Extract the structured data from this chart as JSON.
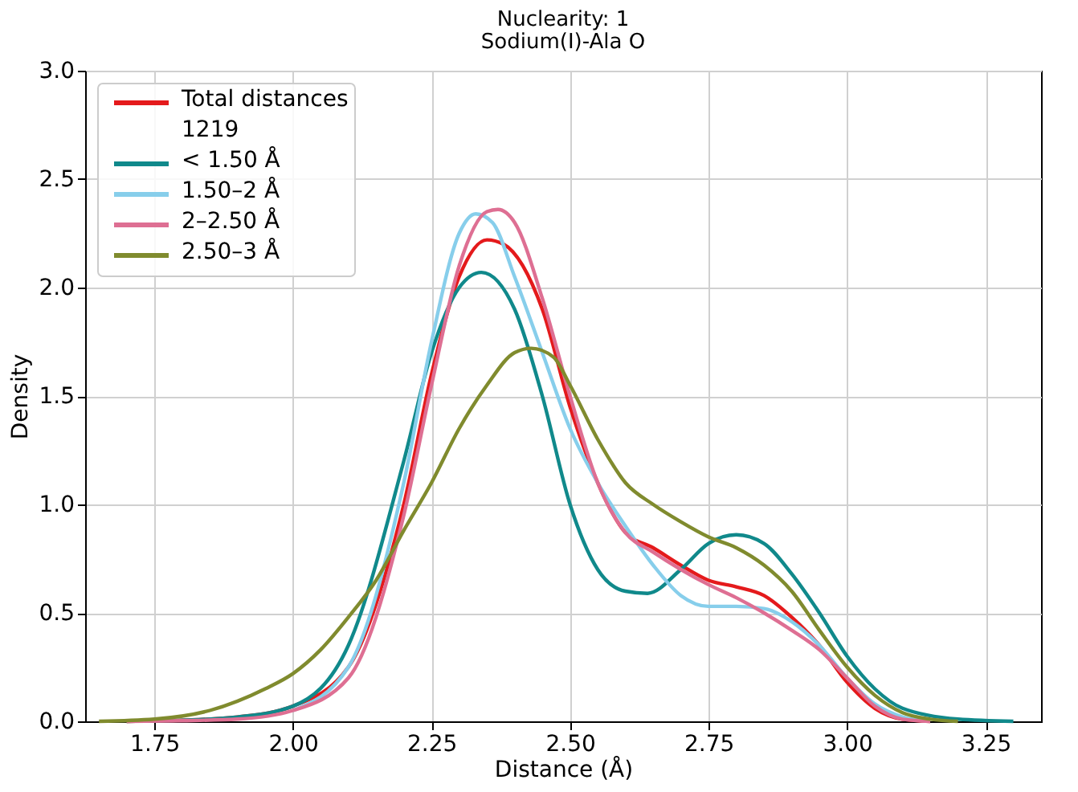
{
  "chart_data": {
    "type": "line",
    "title": "Nuclearity: 1",
    "subtitle": "Sodium(I)-Ala O",
    "xlabel": "Distance (Å)",
    "ylabel": "Density",
    "xlim": [
      1.625,
      3.35
    ],
    "ylim": [
      0,
      3.0
    ],
    "xticks": [
      1.75,
      {
        "value": 2,
        "label": "2.00"
      },
      2.25,
      {
        "value": 2.5,
        "label": "2.50"
      },
      2.75,
      {
        "value": 3,
        "label": "3.00"
      },
      3.25
    ],
    "yticks": [
      {
        "value": 0,
        "label": "0.0"
      },
      0.5,
      {
        "value": 1,
        "label": "1.0"
      },
      1.5,
      {
        "value": 2,
        "label": "2.0"
      },
      2.5,
      {
        "value": 3,
        "label": "3.0"
      }
    ],
    "grid": true,
    "legend": "top left",
    "line_style": "solid",
    "marker": "none",
    "series": [
      {
        "name": "Total distances\n1219",
        "color": "#e41a1c",
        "x": [
          1.7,
          1.8,
          1.9,
          2.0,
          2.1,
          2.2,
          2.25,
          2.3,
          2.35,
          2.38,
          2.45,
          2.5,
          2.55,
          2.6,
          2.65,
          2.7,
          2.75,
          2.8,
          2.85,
          2.9,
          2.95,
          3.0,
          3.05,
          3.1,
          3.15
        ],
        "values": [
          0,
          0.005,
          0.02,
          0.07,
          0.25,
          1.0,
          1.6,
          2.05,
          2.22,
          2.2,
          1.9,
          1.45,
          1.1,
          0.87,
          0.8,
          0.72,
          0.65,
          0.62,
          0.58,
          0.48,
          0.35,
          0.18,
          0.06,
          0.01,
          0
        ]
      },
      {
        "name": "< 1.50 Å",
        "color": "#10898b",
        "x": [
          1.7,
          1.8,
          1.9,
          2.0,
          2.1,
          2.2,
          2.25,
          2.3,
          2.34,
          2.4,
          2.45,
          2.5,
          2.55,
          2.6,
          2.64,
          2.7,
          2.75,
          2.8,
          2.85,
          2.9,
          2.95,
          3.0,
          3.05,
          3.1,
          3.2,
          3.3
        ],
        "values": [
          0,
          0.005,
          0.02,
          0.07,
          0.35,
          1.2,
          1.7,
          2.0,
          2.07,
          1.9,
          1.5,
          1.0,
          0.7,
          0.6,
          0.59,
          0.7,
          0.82,
          0.86,
          0.82,
          0.68,
          0.5,
          0.3,
          0.15,
          0.06,
          0.01,
          0
        ]
      },
      {
        "name": "1.50–2 Å",
        "color": "#87ceeb",
        "x": [
          2.0,
          2.1,
          2.2,
          2.25,
          2.3,
          2.33,
          2.36,
          2.4,
          2.45,
          2.5,
          2.55,
          2.6,
          2.65,
          2.7,
          2.75,
          2.8,
          2.85,
          2.9,
          2.95,
          3.0,
          3.05,
          3.1,
          3.15
        ],
        "values": [
          0.05,
          0.25,
          1.1,
          1.75,
          2.25,
          2.34,
          2.3,
          2.05,
          1.7,
          1.35,
          1.1,
          0.9,
          0.72,
          0.58,
          0.53,
          0.53,
          0.52,
          0.46,
          0.35,
          0.2,
          0.08,
          0.02,
          0
        ]
      },
      {
        "name": "2–2.50 Å",
        "color": "#de6f93",
        "x": [
          1.7,
          1.8,
          1.9,
          2.0,
          2.1,
          2.2,
          2.25,
          2.3,
          2.35,
          2.37,
          2.4,
          2.45,
          2.5,
          2.55,
          2.6,
          2.65,
          2.7,
          2.75,
          2.8,
          2.85,
          2.9,
          2.95,
          3.0,
          3.05,
          3.1,
          3.15
        ],
        "values": [
          0,
          0.003,
          0.01,
          0.05,
          0.2,
          0.95,
          1.55,
          2.1,
          2.35,
          2.36,
          2.3,
          1.95,
          1.5,
          1.1,
          0.87,
          0.78,
          0.7,
          0.63,
          0.57,
          0.5,
          0.42,
          0.33,
          0.2,
          0.07,
          0.01,
          0
        ]
      },
      {
        "name": "2.50–3 Å",
        "color": "#808b2e",
        "x": [
          1.65,
          1.75,
          1.85,
          1.95,
          2.0,
          2.05,
          2.1,
          2.15,
          2.2,
          2.25,
          2.3,
          2.35,
          2.4,
          2.43,
          2.47,
          2.5,
          2.55,
          2.6,
          2.65,
          2.7,
          2.75,
          2.8,
          2.85,
          2.9,
          2.95,
          3.0,
          3.05,
          3.1,
          3.15,
          3.2
        ],
        "values": [
          0,
          0.01,
          0.05,
          0.15,
          0.22,
          0.33,
          0.48,
          0.65,
          0.88,
          1.1,
          1.35,
          1.55,
          1.7,
          1.72,
          1.68,
          1.55,
          1.3,
          1.1,
          1.0,
          0.92,
          0.85,
          0.8,
          0.72,
          0.6,
          0.42,
          0.25,
          0.12,
          0.04,
          0.01,
          0
        ]
      }
    ]
  }
}
